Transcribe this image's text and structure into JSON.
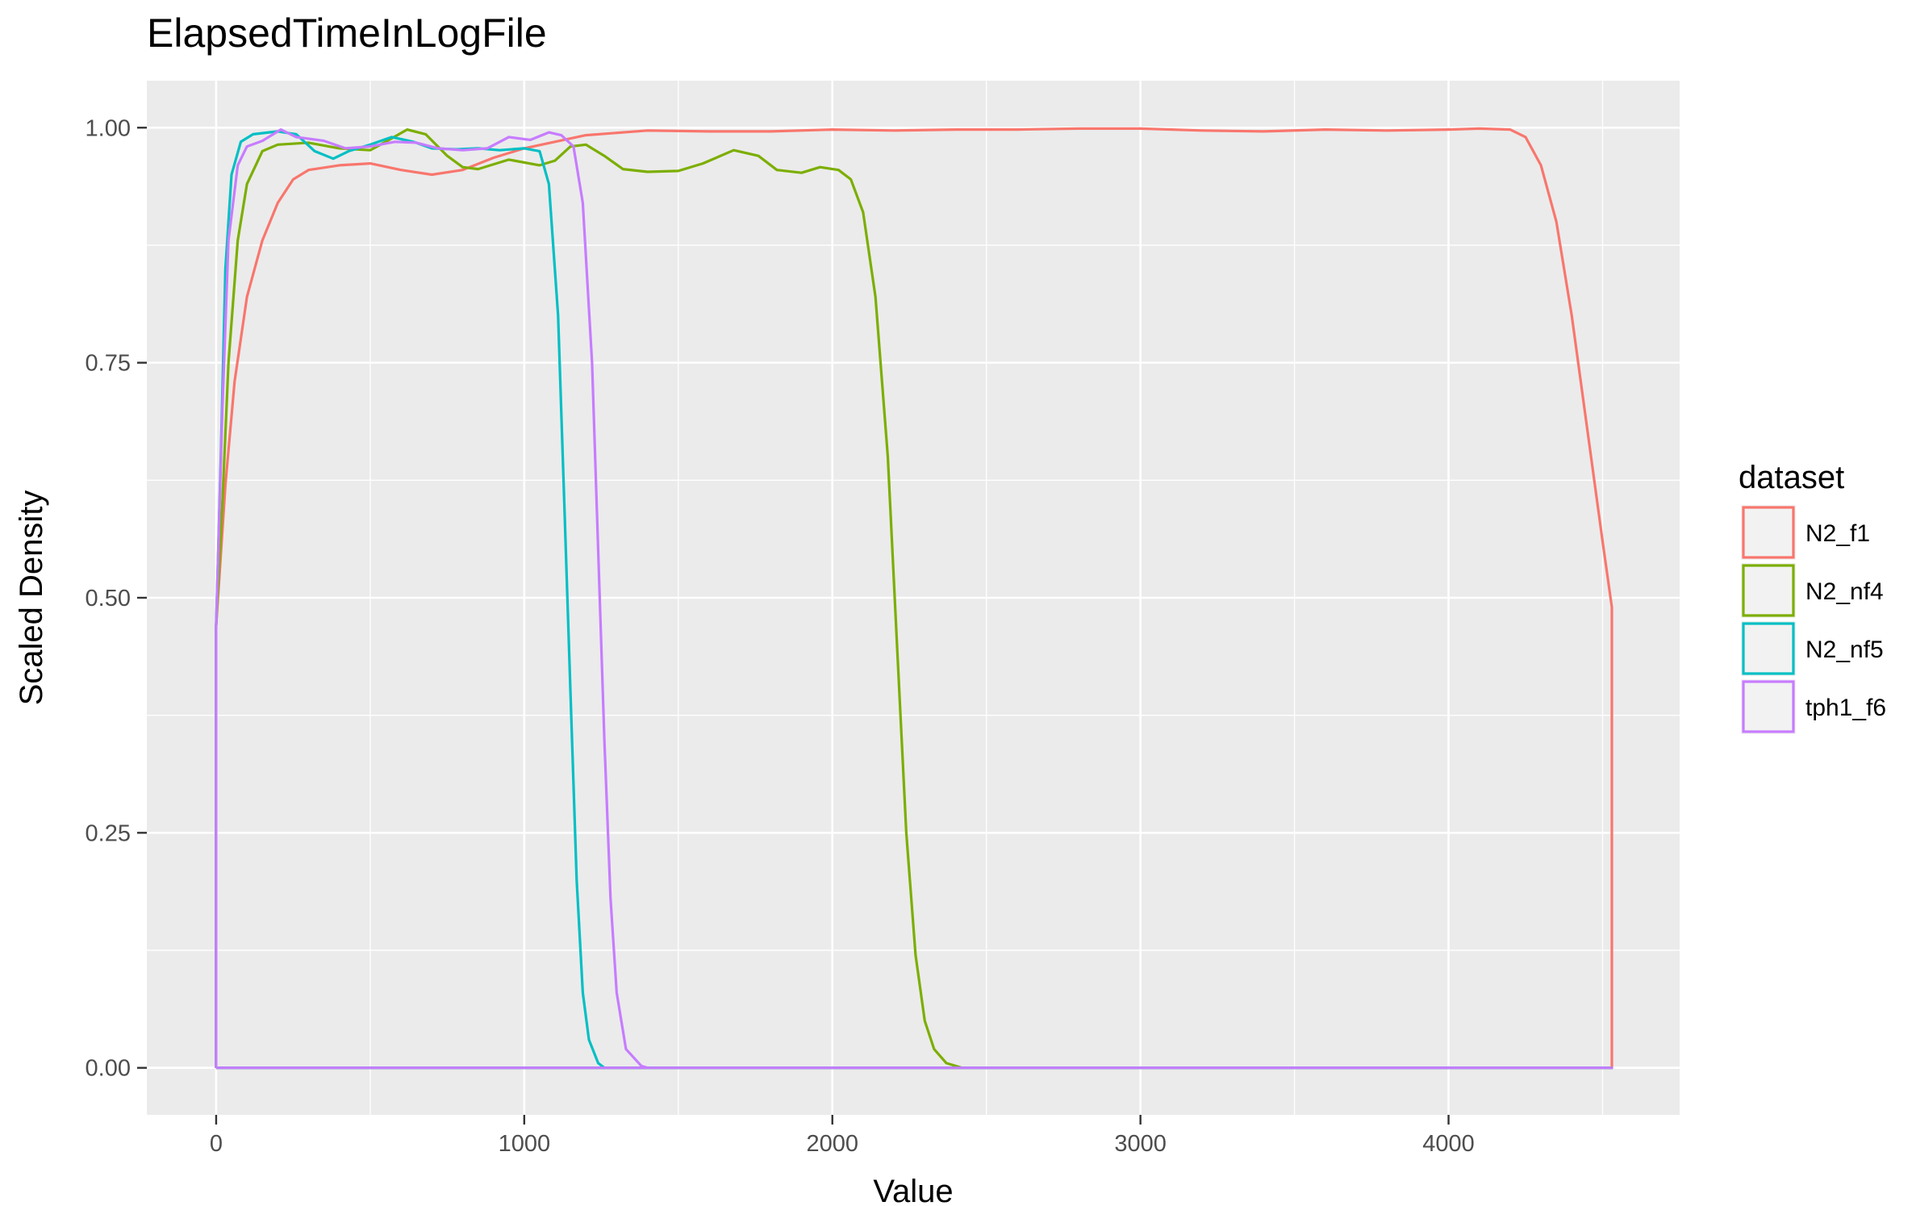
{
  "chart_data": {
    "type": "line",
    "title": "ElapsedTimeInLogFile",
    "xlabel": "Value",
    "ylabel": "Scaled Density",
    "xlim": [
      -225,
      4750
    ],
    "ylim": [
      -0.05,
      1.05
    ],
    "x_ticks": [
      0,
      1000,
      2000,
      3000,
      4000
    ],
    "x_tick_labels": [
      "0",
      "1000",
      "2000",
      "3000",
      "4000"
    ],
    "y_ticks": [
      0,
      0.25,
      0.5,
      0.75,
      1.0
    ],
    "y_tick_labels": [
      "0.00",
      "0.25",
      "0.50",
      "0.75",
      "1.00"
    ],
    "grid": true,
    "legend_title": "dataset",
    "legend_position": "right",
    "series": [
      {
        "name": "N2_f1",
        "color": "#F8766D",
        "points": [
          [
            0,
            0
          ],
          [
            0,
            0.47
          ],
          [
            30,
            0.62
          ],
          [
            60,
            0.73
          ],
          [
            100,
            0.82
          ],
          [
            150,
            0.88
          ],
          [
            200,
            0.92
          ],
          [
            250,
            0.945
          ],
          [
            300,
            0.955
          ],
          [
            400,
            0.96
          ],
          [
            500,
            0.962
          ],
          [
            600,
            0.955
          ],
          [
            700,
            0.95
          ],
          [
            800,
            0.955
          ],
          [
            900,
            0.968
          ],
          [
            1000,
            0.978
          ],
          [
            1200,
            0.992
          ],
          [
            1400,
            0.997
          ],
          [
            1600,
            0.996
          ],
          [
            1800,
            0.996
          ],
          [
            2000,
            0.998
          ],
          [
            2200,
            0.997
          ],
          [
            2400,
            0.998
          ],
          [
            2600,
            0.998
          ],
          [
            2800,
            0.999
          ],
          [
            3000,
            0.999
          ],
          [
            3200,
            0.997
          ],
          [
            3400,
            0.996
          ],
          [
            3600,
            0.998
          ],
          [
            3800,
            0.997
          ],
          [
            4000,
            0.998
          ],
          [
            4100,
            0.999
          ],
          [
            4200,
            0.998
          ],
          [
            4250,
            0.99
          ],
          [
            4300,
            0.96
          ],
          [
            4350,
            0.9
          ],
          [
            4400,
            0.8
          ],
          [
            4450,
            0.68
          ],
          [
            4500,
            0.56
          ],
          [
            4530,
            0.49
          ],
          [
            4530,
            0
          ],
          [
            0,
            0
          ]
        ]
      },
      {
        "name": "N2_nf4",
        "color": "#7CAE00",
        "points": [
          [
            0,
            0
          ],
          [
            0,
            0.47
          ],
          [
            20,
            0.6
          ],
          [
            40,
            0.75
          ],
          [
            70,
            0.88
          ],
          [
            100,
            0.94
          ],
          [
            150,
            0.975
          ],
          [
            200,
            0.982
          ],
          [
            300,
            0.984
          ],
          [
            400,
            0.978
          ],
          [
            500,
            0.976
          ],
          [
            550,
            0.985
          ],
          [
            620,
            0.998
          ],
          [
            680,
            0.993
          ],
          [
            750,
            0.97
          ],
          [
            800,
            0.958
          ],
          [
            850,
            0.956
          ],
          [
            950,
            0.966
          ],
          [
            1050,
            0.96
          ],
          [
            1100,
            0.965
          ],
          [
            1150,
            0.98
          ],
          [
            1200,
            0.982
          ],
          [
            1260,
            0.97
          ],
          [
            1320,
            0.956
          ],
          [
            1400,
            0.953
          ],
          [
            1500,
            0.954
          ],
          [
            1580,
            0.962
          ],
          [
            1680,
            0.976
          ],
          [
            1760,
            0.97
          ],
          [
            1820,
            0.955
          ],
          [
            1900,
            0.952
          ],
          [
            1960,
            0.958
          ],
          [
            2020,
            0.955
          ],
          [
            2060,
            0.945
          ],
          [
            2100,
            0.91
          ],
          [
            2140,
            0.82
          ],
          [
            2180,
            0.65
          ],
          [
            2210,
            0.45
          ],
          [
            2240,
            0.25
          ],
          [
            2270,
            0.12
          ],
          [
            2300,
            0.05
          ],
          [
            2330,
            0.02
          ],
          [
            2370,
            0.005
          ],
          [
            2420,
            0
          ],
          [
            4530,
            0
          ],
          [
            0,
            0
          ]
        ]
      },
      {
        "name": "N2_nf5",
        "color": "#00BFC4",
        "points": [
          [
            0,
            0
          ],
          [
            0,
            0.47
          ],
          [
            15,
            0.65
          ],
          [
            30,
            0.85
          ],
          [
            50,
            0.95
          ],
          [
            80,
            0.985
          ],
          [
            120,
            0.993
          ],
          [
            200,
            0.996
          ],
          [
            260,
            0.993
          ],
          [
            320,
            0.975
          ],
          [
            380,
            0.967
          ],
          [
            430,
            0.975
          ],
          [
            500,
            0.982
          ],
          [
            570,
            0.99
          ],
          [
            640,
            0.985
          ],
          [
            700,
            0.978
          ],
          [
            780,
            0.977
          ],
          [
            850,
            0.978
          ],
          [
            920,
            0.976
          ],
          [
            1000,
            0.978
          ],
          [
            1050,
            0.975
          ],
          [
            1080,
            0.94
          ],
          [
            1110,
            0.8
          ],
          [
            1130,
            0.6
          ],
          [
            1150,
            0.4
          ],
          [
            1170,
            0.2
          ],
          [
            1190,
            0.08
          ],
          [
            1210,
            0.03
          ],
          [
            1240,
            0.005
          ],
          [
            1260,
            0
          ],
          [
            4530,
            0
          ],
          [
            0,
            0
          ]
        ]
      },
      {
        "name": "tph1_f6",
        "color": "#C77CFF",
        "points": [
          [
            0,
            0
          ],
          [
            0,
            0.47
          ],
          [
            20,
            0.7
          ],
          [
            40,
            0.88
          ],
          [
            70,
            0.96
          ],
          [
            100,
            0.98
          ],
          [
            150,
            0.986
          ],
          [
            210,
            0.998
          ],
          [
            260,
            0.99
          ],
          [
            350,
            0.986
          ],
          [
            420,
            0.978
          ],
          [
            500,
            0.98
          ],
          [
            580,
            0.985
          ],
          [
            650,
            0.984
          ],
          [
            720,
            0.978
          ],
          [
            800,
            0.976
          ],
          [
            880,
            0.978
          ],
          [
            950,
            0.99
          ],
          [
            1020,
            0.987
          ],
          [
            1080,
            0.995
          ],
          [
            1120,
            0.992
          ],
          [
            1160,
            0.98
          ],
          [
            1190,
            0.92
          ],
          [
            1220,
            0.75
          ],
          [
            1240,
            0.55
          ],
          [
            1260,
            0.35
          ],
          [
            1280,
            0.18
          ],
          [
            1300,
            0.08
          ],
          [
            1330,
            0.02
          ],
          [
            1380,
            0.002
          ],
          [
            1400,
            0
          ],
          [
            4530,
            0
          ],
          [
            0,
            0
          ]
        ]
      }
    ]
  }
}
